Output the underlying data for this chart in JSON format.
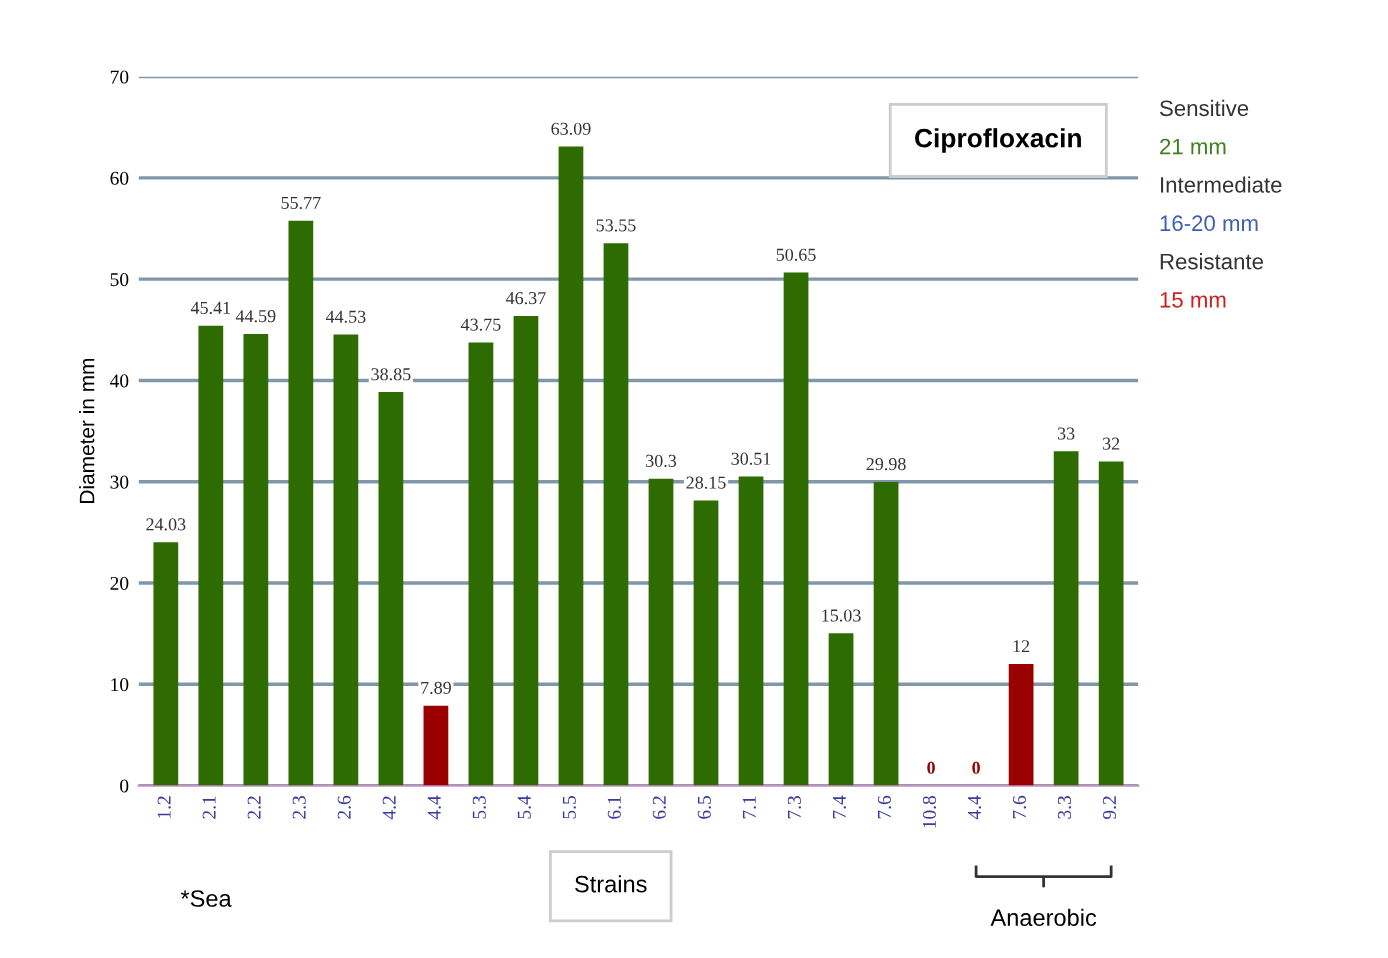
{
  "chart_data": {
    "type": "bar",
    "title": "Ciprofloxacin",
    "ylabel": "Diameter in mm",
    "categories": [
      "1.2",
      "2.1",
      "2.2",
      "2.3",
      "2.6",
      "4.2",
      "4.4",
      "5.3",
      "5.4",
      "5.5",
      "6.1",
      "6.2",
      "6.5",
      "7.1",
      "7.3",
      "7.4",
      "7.6",
      "10.8",
      "4.4",
      "7.6",
      "3.3",
      "9.2"
    ],
    "values": [
      24.03,
      45.41,
      44.59,
      55.77,
      44.53,
      38.85,
      7.89,
      43.75,
      46.37,
      63.09,
      53.55,
      30.3,
      28.15,
      30.51,
      50.65,
      15.03,
      29.98,
      0,
      0,
      12,
      33,
      32
    ],
    "colors": [
      "#2e6b00",
      "#2e6b00",
      "#2e6b00",
      "#2e6b00",
      "#2e6b00",
      "#2e6b00",
      "#9b0000",
      "#2e6b00",
      "#2e6b00",
      "#2e6b00",
      "#2e6b00",
      "#2e6b00",
      "#2e6b00",
      "#2e6b00",
      "#2e6b00",
      "#2e6b00",
      "#2e6b00",
      "#9b0000",
      "#9b0000",
      "#9b0000",
      "#2e6b00",
      "#2e6b00"
    ],
    "data_labels": true,
    "ylim": [
      0,
      70
    ],
    "yticks": [
      0,
      10,
      20,
      30,
      40,
      50,
      60,
      70
    ],
    "grid": "y",
    "annotations": [
      "Sensitive",
      "21 mm",
      "Intermediate",
      "16-20 mm",
      "Resistante",
      "15 mm",
      "*Sea",
      "Strains",
      "Anaerobic"
    ]
  }
}
